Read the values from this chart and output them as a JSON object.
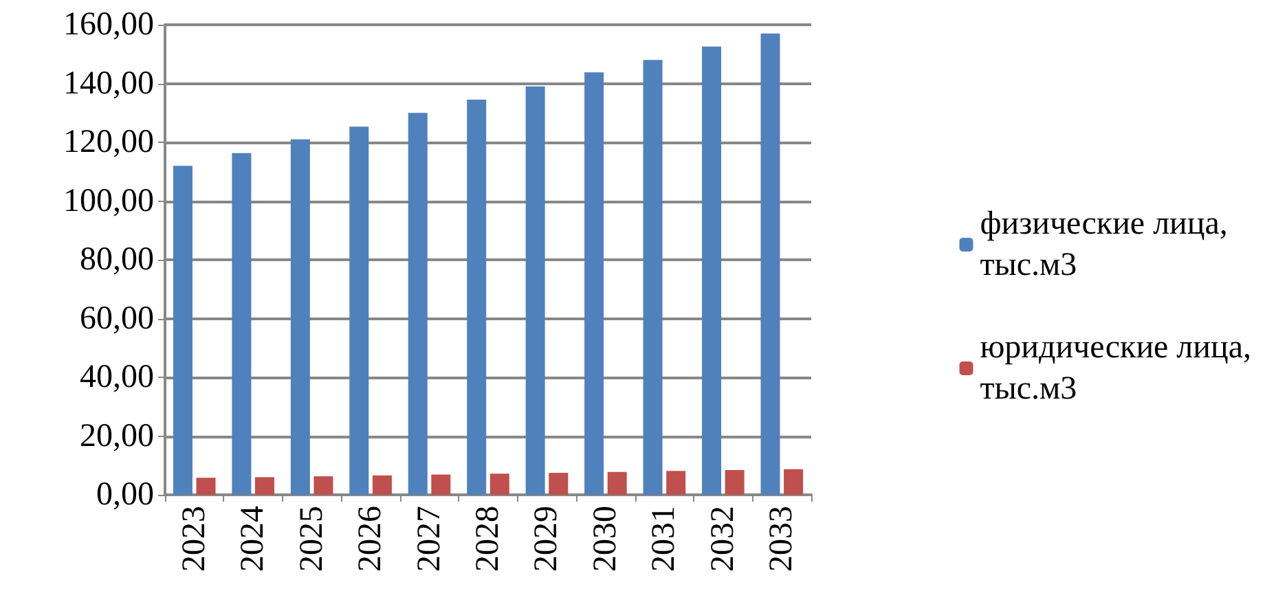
{
  "chart_data": {
    "type": "bar",
    "categories": [
      "2023",
      "2024",
      "2025",
      "2026",
      "2027",
      "2028",
      "2029",
      "2030",
      "2031",
      "2032",
      "2033"
    ],
    "series": [
      {
        "name": "физические лица, тыс.м3",
        "color": "#4f81bd",
        "values": [
          112,
          116.3,
          121,
          125.3,
          130,
          134.5,
          139,
          143.8,
          148,
          152.6,
          157
        ]
      },
      {
        "name": "юридические лица, тыс.м3",
        "color": "#c0504d",
        "values": [
          5.8,
          6.0,
          6.3,
          6.6,
          6.9,
          7.2,
          7.5,
          7.8,
          8.1,
          8.4,
          8.7
        ]
      }
    ],
    "ylim": [
      0,
      160
    ],
    "yticks": [
      {
        "value": 0,
        "label": "0,00"
      },
      {
        "value": 20,
        "label": "20,00"
      },
      {
        "value": 40,
        "label": "40,00"
      },
      {
        "value": 60,
        "label": "60,00"
      },
      {
        "value": 80,
        "label": "80,00"
      },
      {
        "value": 100,
        "label": "100,00"
      },
      {
        "value": 120,
        "label": "120,00"
      },
      {
        "value": 140,
        "label": "140,00"
      },
      {
        "value": 160,
        "label": "160,00"
      }
    ],
    "grid": "y",
    "legend": "right"
  }
}
